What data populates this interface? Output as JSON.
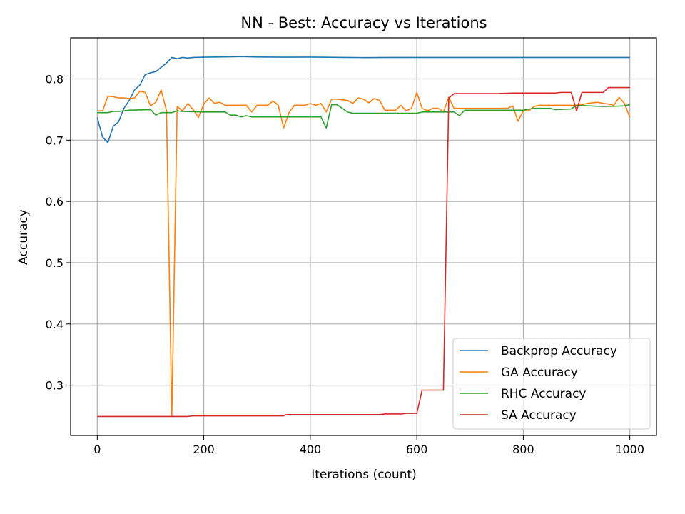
{
  "chart_data": {
    "type": "line",
    "title": "NN - Best: Accuracy vs Iterations",
    "xlabel": "Iterations (count)",
    "ylabel": "Accuracy",
    "xlim": [
      -50,
      1050
    ],
    "ylim": [
      0.218,
      0.867
    ],
    "xticks": [
      0,
      200,
      400,
      600,
      800,
      1000
    ],
    "xtick_labels": [
      "0",
      "200",
      "400",
      "600",
      "800",
      "1000"
    ],
    "yticks": [
      0.3,
      0.4,
      0.5,
      0.6,
      0.7,
      0.8
    ],
    "ytick_labels": [
      "0.3",
      "0.4",
      "0.5",
      "0.6",
      "0.7",
      "0.8"
    ],
    "grid": true,
    "legend_position": "lower-right",
    "series": [
      {
        "name": "Backprop Accuracy",
        "color": "#1f77b4",
        "points": [
          [
            0,
            0.737
          ],
          [
            10,
            0.705
          ],
          [
            20,
            0.696
          ],
          [
            30,
            0.723
          ],
          [
            40,
            0.73
          ],
          [
            50,
            0.752
          ],
          [
            60,
            0.765
          ],
          [
            70,
            0.782
          ],
          [
            80,
            0.79
          ],
          [
            90,
            0.807
          ],
          [
            100,
            0.81
          ],
          [
            110,
            0.812
          ],
          [
            120,
            0.819
          ],
          [
            130,
            0.826
          ],
          [
            140,
            0.835
          ],
          [
            150,
            0.833
          ],
          [
            160,
            0.835
          ],
          [
            170,
            0.834
          ],
          [
            180,
            0.835
          ],
          [
            200,
            0.8355
          ],
          [
            250,
            0.836
          ],
          [
            270,
            0.8365
          ],
          [
            300,
            0.8358
          ],
          [
            350,
            0.8355
          ],
          [
            400,
            0.8356
          ],
          [
            450,
            0.8352
          ],
          [
            500,
            0.8348
          ],
          [
            550,
            0.835
          ],
          [
            600,
            0.835
          ],
          [
            650,
            0.835
          ],
          [
            700,
            0.835
          ],
          [
            750,
            0.835
          ],
          [
            800,
            0.835
          ],
          [
            850,
            0.835
          ],
          [
            900,
            0.835
          ],
          [
            950,
            0.835
          ],
          [
            1000,
            0.835
          ]
        ]
      },
      {
        "name": "GA Accuracy",
        "color": "#ff7f0e",
        "points": [
          [
            0,
            0.748
          ],
          [
            10,
            0.748
          ],
          [
            20,
            0.772
          ],
          [
            30,
            0.771
          ],
          [
            40,
            0.769
          ],
          [
            50,
            0.769
          ],
          [
            60,
            0.768
          ],
          [
            70,
            0.769
          ],
          [
            80,
            0.78
          ],
          [
            90,
            0.778
          ],
          [
            100,
            0.756
          ],
          [
            110,
            0.762
          ],
          [
            120,
            0.782
          ],
          [
            130,
            0.748
          ],
          [
            140,
            0.249
          ],
          [
            150,
            0.755
          ],
          [
            160,
            0.748
          ],
          [
            170,
            0.76
          ],
          [
            180,
            0.75
          ],
          [
            190,
            0.737
          ],
          [
            200,
            0.759
          ],
          [
            210,
            0.769
          ],
          [
            220,
            0.76
          ],
          [
            230,
            0.762
          ],
          [
            240,
            0.757
          ],
          [
            250,
            0.757
          ],
          [
            260,
            0.757
          ],
          [
            270,
            0.757
          ],
          [
            280,
            0.757
          ],
          [
            290,
            0.746
          ],
          [
            300,
            0.757
          ],
          [
            310,
            0.757
          ],
          [
            320,
            0.757
          ],
          [
            330,
            0.764
          ],
          [
            340,
            0.757
          ],
          [
            350,
            0.72
          ],
          [
            360,
            0.745
          ],
          [
            370,
            0.757
          ],
          [
            380,
            0.757
          ],
          [
            390,
            0.757
          ],
          [
            400,
            0.76
          ],
          [
            410,
            0.757
          ],
          [
            420,
            0.76
          ],
          [
            430,
            0.746
          ],
          [
            440,
            0.767
          ],
          [
            450,
            0.767
          ],
          [
            460,
            0.766
          ],
          [
            470,
            0.765
          ],
          [
            480,
            0.76
          ],
          [
            490,
            0.769
          ],
          [
            500,
            0.767
          ],
          [
            510,
            0.761
          ],
          [
            520,
            0.768
          ],
          [
            530,
            0.765
          ],
          [
            540,
            0.749
          ],
          [
            550,
            0.749
          ],
          [
            560,
            0.749
          ],
          [
            570,
            0.757
          ],
          [
            580,
            0.748
          ],
          [
            590,
            0.752
          ],
          [
            600,
            0.778
          ],
          [
            610,
            0.752
          ],
          [
            620,
            0.748
          ],
          [
            630,
            0.752
          ],
          [
            640,
            0.752
          ],
          [
            650,
            0.746
          ],
          [
            660,
            0.77
          ],
          [
            670,
            0.752
          ],
          [
            680,
            0.752
          ],
          [
            690,
            0.752
          ],
          [
            700,
            0.752
          ],
          [
            750,
            0.752
          ],
          [
            770,
            0.752
          ],
          [
            780,
            0.756
          ],
          [
            790,
            0.731
          ],
          [
            800,
            0.748
          ],
          [
            810,
            0.748
          ],
          [
            820,
            0.755
          ],
          [
            830,
            0.757
          ],
          [
            840,
            0.757
          ],
          [
            850,
            0.757
          ],
          [
            880,
            0.757
          ],
          [
            900,
            0.757
          ],
          [
            910,
            0.758
          ],
          [
            920,
            0.76
          ],
          [
            930,
            0.761
          ],
          [
            940,
            0.762
          ],
          [
            950,
            0.76
          ],
          [
            960,
            0.759
          ],
          [
            970,
            0.757
          ],
          [
            980,
            0.77
          ],
          [
            990,
            0.76
          ],
          [
            1000,
            0.737
          ]
        ]
      },
      {
        "name": "RHC Accuracy",
        "color": "#2ca02c",
        "points": [
          [
            0,
            0.745
          ],
          [
            20,
            0.745
          ],
          [
            30,
            0.747
          ],
          [
            40,
            0.747
          ],
          [
            50,
            0.748
          ],
          [
            60,
            0.749
          ],
          [
            100,
            0.75
          ],
          [
            110,
            0.741
          ],
          [
            120,
            0.745
          ],
          [
            140,
            0.745
          ],
          [
            150,
            0.748
          ],
          [
            160,
            0.747
          ],
          [
            200,
            0.746
          ],
          [
            240,
            0.746
          ],
          [
            250,
            0.741
          ],
          [
            260,
            0.741
          ],
          [
            270,
            0.738
          ],
          [
            280,
            0.74
          ],
          [
            290,
            0.738
          ],
          [
            420,
            0.738
          ],
          [
            430,
            0.72
          ],
          [
            440,
            0.758
          ],
          [
            450,
            0.758
          ],
          [
            460,
            0.752
          ],
          [
            470,
            0.746
          ],
          [
            480,
            0.744
          ],
          [
            600,
            0.744
          ],
          [
            610,
            0.746
          ],
          [
            670,
            0.746
          ],
          [
            680,
            0.74
          ],
          [
            690,
            0.749
          ],
          [
            700,
            0.749
          ],
          [
            800,
            0.749
          ],
          [
            820,
            0.752
          ],
          [
            850,
            0.752
          ],
          [
            860,
            0.75
          ],
          [
            890,
            0.751
          ],
          [
            900,
            0.757
          ],
          [
            950,
            0.755
          ],
          [
            990,
            0.756
          ],
          [
            1000,
            0.758
          ]
        ]
      },
      {
        "name": "SA Accuracy",
        "color": "#d62728",
        "points": [
          [
            0,
            0.249
          ],
          [
            170,
            0.249
          ],
          [
            180,
            0.25
          ],
          [
            350,
            0.25
          ],
          [
            355,
            0.252
          ],
          [
            530,
            0.252
          ],
          [
            540,
            0.253
          ],
          [
            570,
            0.253
          ],
          [
            580,
            0.254
          ],
          [
            600,
            0.254
          ],
          [
            610,
            0.292
          ],
          [
            650,
            0.292
          ],
          [
            660,
            0.769
          ],
          [
            670,
            0.776
          ],
          [
            700,
            0.776
          ],
          [
            750,
            0.776
          ],
          [
            780,
            0.777
          ],
          [
            860,
            0.777
          ],
          [
            870,
            0.778
          ],
          [
            890,
            0.778
          ],
          [
            900,
            0.748
          ],
          [
            910,
            0.778
          ],
          [
            950,
            0.778
          ],
          [
            960,
            0.786
          ],
          [
            1000,
            0.786
          ]
        ]
      }
    ]
  }
}
